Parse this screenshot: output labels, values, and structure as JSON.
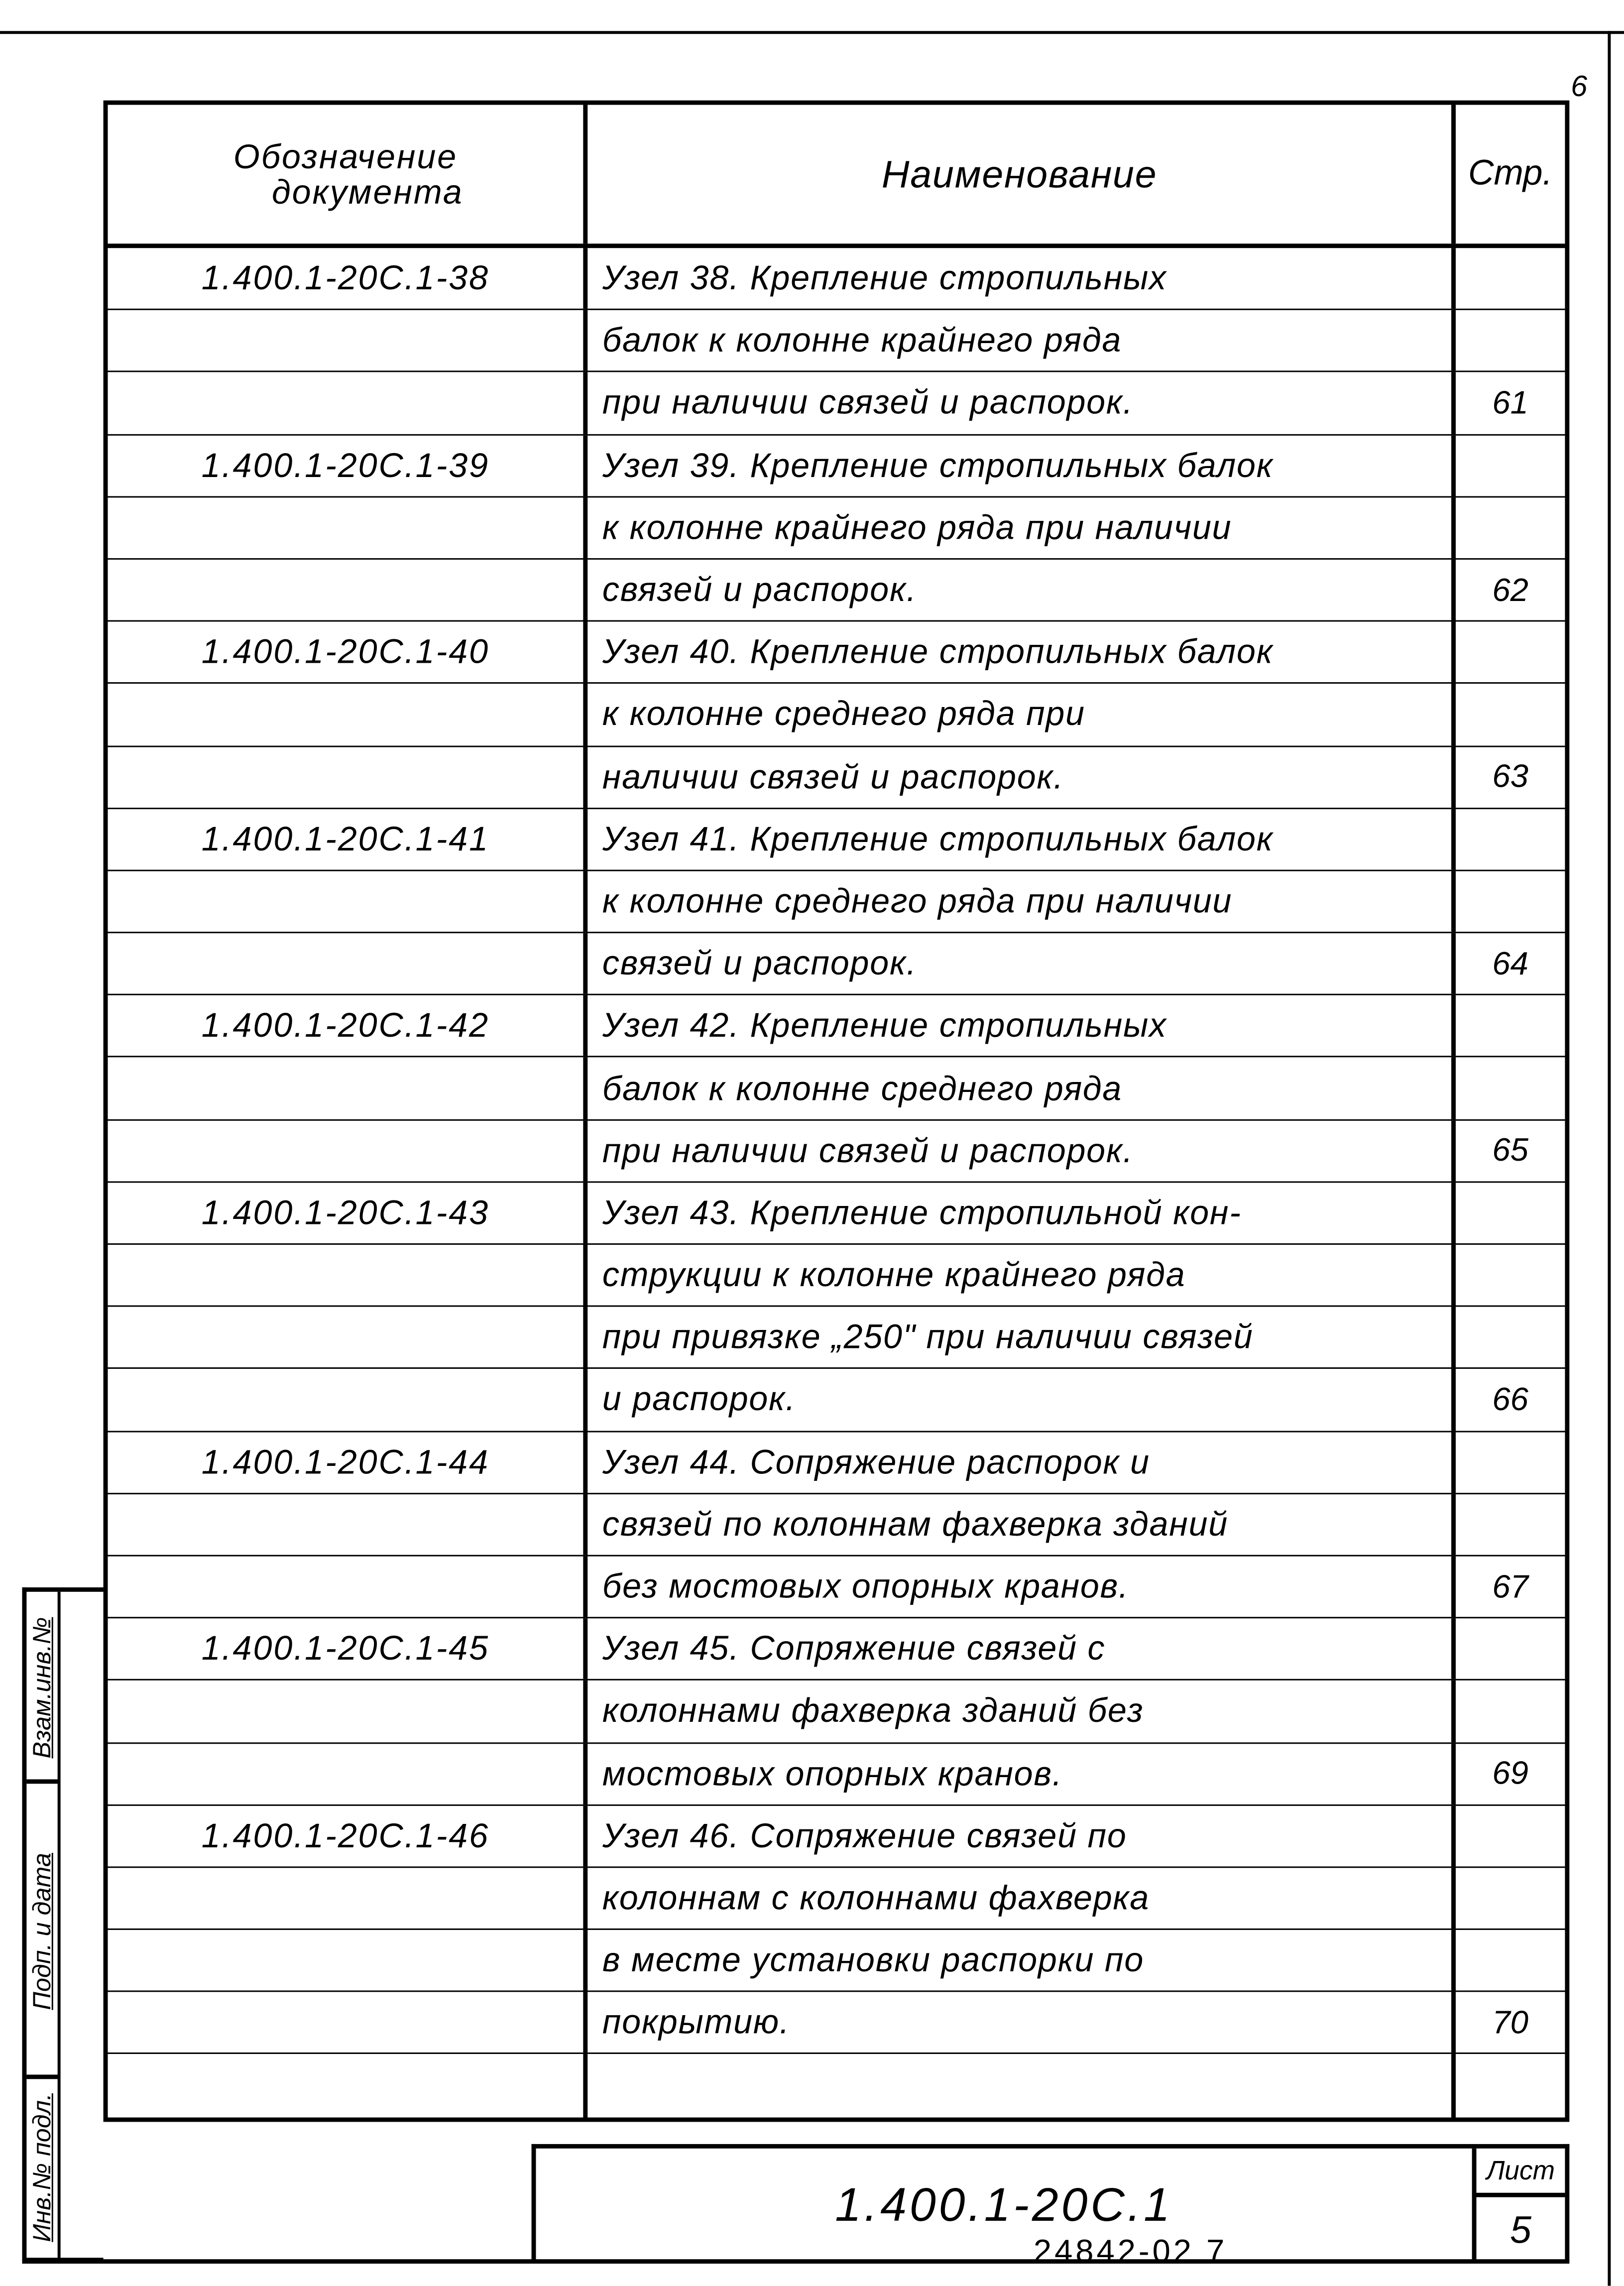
{
  "page_number": "6",
  "header": {
    "doc_col_line1": "Обозначение",
    "doc_col_line2": "документа",
    "name_col": "Наименование",
    "page_col": "Стр."
  },
  "rows": [
    {
      "doc": "1.400.1-20С.1-38",
      "name": "Узел 38. Крепление стропильных",
      "page": ""
    },
    {
      "doc": "",
      "name": "балок к колонне крайнего ряда",
      "page": ""
    },
    {
      "doc": "",
      "name": "при наличии связей и распорок.",
      "page": "61"
    },
    {
      "doc": "1.400.1-20С.1-39",
      "name": "Узел 39. Крепление стропильных балок",
      "page": ""
    },
    {
      "doc": "",
      "name": "к колонне крайнего ряда при наличии",
      "page": ""
    },
    {
      "doc": "",
      "name": "связей и распорок.",
      "page": "62"
    },
    {
      "doc": "1.400.1-20С.1-40",
      "name": "Узел 40. Крепление стропильных балок",
      "page": ""
    },
    {
      "doc": "",
      "name": "к колонне среднего ряда при",
      "page": ""
    },
    {
      "doc": "",
      "name": "наличии связей и распорок.",
      "page": "63"
    },
    {
      "doc": "1.400.1-20С.1-41",
      "name": "Узел 41. Крепление стропильных балок",
      "page": ""
    },
    {
      "doc": "",
      "name": "к колонне среднего ряда при наличии",
      "page": ""
    },
    {
      "doc": "",
      "name": "связей и распорок.",
      "page": "64"
    },
    {
      "doc": "1.400.1-20С.1-42",
      "name": "Узел 42. Крепление стропильных",
      "page": ""
    },
    {
      "doc": "",
      "name": "балок к колонне среднего ряда",
      "page": ""
    },
    {
      "doc": "",
      "name": "при наличии связей и распорок.",
      "page": "65"
    },
    {
      "doc": "1.400.1-20С.1-43",
      "name": "Узел 43. Крепление стропильной кон-",
      "page": ""
    },
    {
      "doc": "",
      "name": "струкции к колонне крайнего ряда",
      "page": ""
    },
    {
      "doc": "",
      "name": "при привязке „250\" при наличии связей",
      "page": ""
    },
    {
      "doc": "",
      "name": "и распорок.",
      "page": "66"
    },
    {
      "doc": "1.400.1-20С.1-44",
      "name": "Узел 44. Сопряжение распорок и",
      "page": ""
    },
    {
      "doc": "",
      "name": "связей по колоннам фахверка зданий",
      "page": ""
    },
    {
      "doc": "",
      "name": "без мостовых опорных кранов.",
      "page": "67"
    },
    {
      "doc": "1.400.1-20С.1-45",
      "name": "Узел 45. Сопряжение связей с",
      "page": ""
    },
    {
      "doc": "",
      "name": "колоннами фахверка зданий без",
      "page": ""
    },
    {
      "doc": "",
      "name": "мостовых опорных кранов.",
      "page": "69"
    },
    {
      "doc": "1.400.1-20С.1-46",
      "name": "Узел 46. Сопряжение связей по",
      "page": ""
    },
    {
      "doc": "",
      "name": "колоннам с колоннами фахверка",
      "page": ""
    },
    {
      "doc": "",
      "name": "в месте установки распорки по",
      "page": ""
    },
    {
      "doc": "",
      "name": "покрытию.",
      "page": "70"
    },
    {
      "doc": "",
      "name": "",
      "page": ""
    }
  ],
  "title_block": {
    "code": "1.400.1-20С.1",
    "sheet_label": "Лист",
    "sheet_number": "5"
  },
  "stamp": {
    "replace_inv": "Взам.инв.№",
    "sign_date": "Подп. и дата",
    "inv_orig": "Инв.№ подл."
  },
  "footer": "24842-02   7"
}
